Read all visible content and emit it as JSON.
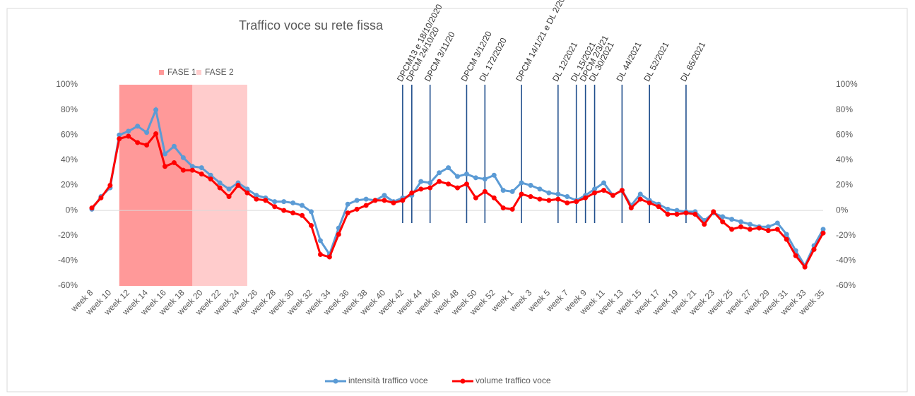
{
  "chart_data": {
    "type": "line",
    "title": "Traffico voce su rete fissa",
    "categories": [
      "week 8",
      null,
      "week 10",
      null,
      "week 12",
      null,
      "week 14",
      null,
      "week 16",
      null,
      "week 18",
      null,
      "week 20",
      null,
      "week 22",
      null,
      "week 24",
      null,
      "week 26",
      null,
      "week 28",
      null,
      "week 30",
      null,
      "week 32",
      null,
      "week 34",
      null,
      "week 36",
      null,
      "week 38",
      null,
      "week 40",
      null,
      "week 42",
      null,
      "week 44",
      null,
      "week 46",
      null,
      "week 48",
      null,
      "week 50",
      null,
      "week 52",
      null,
      "week 1",
      null,
      "week 3",
      null,
      "week 5",
      null,
      "week 7",
      null,
      "week 9",
      null,
      "week 11",
      null,
      "week 13",
      null,
      "week 15",
      null,
      "week 17",
      null,
      "week 19",
      null,
      "week 21",
      null,
      "week 23",
      null,
      "week 25",
      null,
      "week 27",
      null,
      "week 29",
      null,
      "week 31",
      null,
      "week 33",
      null,
      "week 35"
    ],
    "series": [
      {
        "name": "intensità traffico voce",
        "color": "#5b9bd5",
        "values": [
          1,
          11,
          18,
          60,
          63,
          67,
          62,
          80,
          45,
          51,
          42,
          35,
          34,
          28,
          22,
          17,
          22,
          17,
          12,
          10,
          7,
          7,
          6,
          4,
          -1,
          -24,
          -35,
          -14,
          5,
          8,
          9,
          8,
          12,
          7,
          10,
          12,
          23,
          22,
          30,
          34,
          27,
          29,
          26,
          25,
          28,
          16,
          15,
          22,
          20,
          17,
          14,
          13,
          11,
          8,
          12,
          17,
          22,
          12,
          16,
          4,
          13,
          8,
          5,
          1,
          0,
          -1,
          -1,
          -8,
          -2,
          -5,
          -7,
          -9,
          -11,
          -13,
          -13,
          -10,
          -19,
          -32,
          -44,
          -28,
          -15
        ]
      },
      {
        "name": "volume traffico voce",
        "color": "#ff0000",
        "values": [
          2,
          10,
          20,
          57,
          59,
          54,
          52,
          61,
          35,
          38,
          32,
          32,
          29,
          25,
          18,
          11,
          20,
          14,
          9,
          8,
          3,
          0,
          -2,
          -4,
          -12,
          -35,
          -37,
          -19,
          -2,
          1,
          4,
          8,
          8,
          6,
          8,
          14,
          17,
          18,
          23,
          21,
          18,
          21,
          10,
          15,
          10,
          2,
          1,
          13,
          11,
          9,
          8,
          9,
          6,
          7,
          10,
          14,
          16,
          12,
          16,
          2,
          9,
          6,
          3,
          -3,
          -3,
          -2,
          -3,
          -11,
          -1,
          -9,
          -15,
          -13,
          -15,
          -14,
          -16,
          -15,
          -23,
          -36,
          -45,
          -31,
          -18
        ]
      }
    ],
    "ylim": [
      -60,
      100
    ],
    "yticks": [
      {
        "value": -60,
        "label": "-60%"
      },
      {
        "value": -40,
        "label": "-40%"
      },
      {
        "value": -20,
        "label": "-20%"
      },
      {
        "value": 0,
        "label": "0%"
      },
      {
        "value": 20,
        "label": "20%"
      },
      {
        "value": 40,
        "label": "40%"
      },
      {
        "value": 60,
        "label": "60%"
      },
      {
        "value": 80,
        "label": "80%"
      },
      {
        "value": 100,
        "label": "100%"
      }
    ],
    "bands": [
      {
        "name": "FASE 1",
        "color": "#ff9999",
        "from": 3,
        "to": 11
      },
      {
        "name": "FASE 2",
        "color": "#ffcccc",
        "from": 11,
        "to": 17
      }
    ],
    "events": [
      {
        "x": 34,
        "label": "DPCM13 e 18/10/2020"
      },
      {
        "x": 35,
        "label": "DPCM 24/10/20"
      },
      {
        "x": 37,
        "label": "DPCM 3/11/20"
      },
      {
        "x": 41,
        "label": "DPCM 3/12/20"
      },
      {
        "x": 43,
        "label": "DL 172/2020"
      },
      {
        "x": 47,
        "label": "DPCM 14/1/21 e DL 2/2021"
      },
      {
        "x": 51,
        "label": "DL 12/2021"
      },
      {
        "x": 53,
        "label": "DL 15/2021"
      },
      {
        "x": 54,
        "label": "DPCM 2/3/21"
      },
      {
        "x": 55,
        "label": "DL 30/2021"
      },
      {
        "x": 58,
        "label": "DL 44/2021"
      },
      {
        "x": 61,
        "label": "DL 52/2021"
      },
      {
        "x": 65,
        "label": "DL 65/2021"
      }
    ],
    "event_color": "#1f4e8c"
  }
}
